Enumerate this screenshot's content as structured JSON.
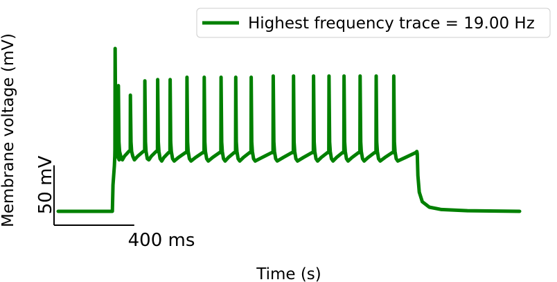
{
  "chart_data": {
    "type": "line",
    "title": "",
    "xlabel": "Time (s)",
    "ylabel": "Membrane voltage (mV)",
    "legend": {
      "placement": "top-right",
      "entries": [
        "Highest frequency trace = 19.00 Hz"
      ]
    },
    "scale_bars": {
      "x_label": "400 ms",
      "x_ms": 400,
      "y_label": "50 mV",
      "y_mv": 50
    },
    "grid": false,
    "xlim_ms": [
      0,
      2300
    ],
    "ylim_mv": [
      -85,
      75
    ],
    "stimulus": {
      "onset_ms": 270,
      "offset_ms": 1790
    },
    "rest_mv": -70,
    "spike_times_ms": [
      284,
      300,
      360,
      432,
      496,
      558,
      642,
      728,
      812,
      885,
      962,
      1072,
      1173,
      1273,
      1350,
      1425,
      1505,
      1585,
      1673
    ],
    "spike_peaks_mv": [
      66,
      35,
      27,
      39,
      40,
      40,
      42,
      42,
      42,
      42,
      42,
      43,
      43,
      43,
      43,
      43,
      43,
      43,
      43
    ],
    "series": [
      {
        "name": "Highest frequency trace = 19.00 Hz",
        "color": "#008000"
      }
    ]
  }
}
